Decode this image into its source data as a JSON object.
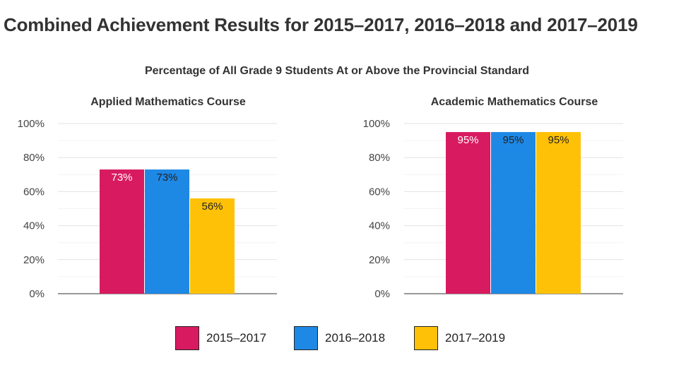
{
  "page_title": "Combined Achievement Results for 2015–2017, 2016–2018 and 2017–2019",
  "chart_subtitle": "Percentage of All Grade 9 Students At or Above the Provincial Standard",
  "colors": {
    "series_2015_2017": "#D81B60",
    "series_2016_2018": "#1E88E5",
    "series_2017_2019": "#FFC107"
  },
  "legend": [
    {
      "label": "2015–2017",
      "color": "#D81B60"
    },
    {
      "label": "2016–2018",
      "color": "#1E88E5"
    },
    {
      "label": "2017–2019",
      "color": "#FFC107"
    }
  ],
  "chart_data": [
    {
      "type": "bar",
      "title": "Applied Mathematics Course",
      "yticks": [
        "0%",
        "20%",
        "40%",
        "60%",
        "80%",
        "100%"
      ],
      "ylim": [
        0,
        100
      ],
      "grid": true,
      "series": [
        {
          "name": "2015–2017",
          "values": [
            73
          ],
          "labels": [
            "73%"
          ]
        },
        {
          "name": "2016–2018",
          "values": [
            73
          ],
          "labels": [
            "73%"
          ]
        },
        {
          "name": "2017–2019",
          "values": [
            56
          ],
          "labels": [
            "56%"
          ]
        }
      ]
    },
    {
      "type": "bar",
      "title": "Academic Mathematics Course",
      "yticks": [
        "0%",
        "20%",
        "40%",
        "60%",
        "80%",
        "100%"
      ],
      "ylim": [
        0,
        100
      ],
      "grid": true,
      "series": [
        {
          "name": "2015–2017",
          "values": [
            95
          ],
          "labels": [
            "95%"
          ]
        },
        {
          "name": "2016–2018",
          "values": [
            95
          ],
          "labels": [
            "95%"
          ]
        },
        {
          "name": "2017–2019",
          "values": [
            95
          ],
          "labels": [
            "95%"
          ]
        }
      ]
    }
  ]
}
